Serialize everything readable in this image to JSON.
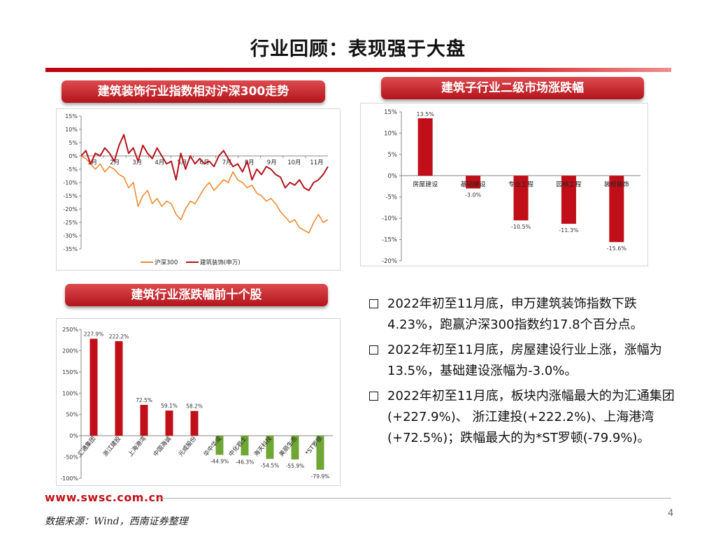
{
  "slide": {
    "title": "行业回顾：表现强于大盘",
    "page_number": "4",
    "footer_url": "www.swsc.com.cn",
    "footer_source": "数据来源：Wind，西南证券整理",
    "accent_color": "#c0121a"
  },
  "banners": {
    "trend": "建筑装饰行业指数相对沪深300走势",
    "subsector": "建筑子行业二级市场涨跌幅",
    "top10": "建筑行业涨跌幅前十个股"
  },
  "bullets": [
    "2022年初至11月底，申万建筑装饰指数下跌4.23%，跑赢沪深300指数约17.8个百分点。",
    "2022年初至11月底，房屋建设行业上涨，涨幅为13.5%，基础建设涨幅为-3.0%。",
    "2022年初至11月底，板块内涨幅最大的为汇通集团(+227.9%)、 浙江建投(+222.2%)、上海港湾(+72.5%)；跌幅最大的为*ST罗顿(-79.9%)。"
  ],
  "chart_data": [
    {
      "type": "line",
      "ylim": [
        -35,
        15
      ],
      "yticks": [
        "15%",
        "10%",
        "5%",
        "0%",
        "-5%",
        "-10%",
        "-15%",
        "-20%",
        "-25%",
        "-30%",
        "-35%"
      ],
      "ytick_values": [
        15,
        10,
        5,
        0,
        -5,
        -10,
        -15,
        -20,
        -25,
        -30,
        -35
      ],
      "month_labels": [
        "1月",
        "2月",
        "3月",
        "4月",
        "5月",
        "6月",
        "7月",
        "8月",
        "9月",
        "10月",
        "11月"
      ],
      "legend_position": "bottom",
      "series": [
        {
          "name": "沪深300",
          "color": "#f08a2e",
          "values": [
            0,
            -1,
            -3,
            -5,
            -3,
            -6,
            -4,
            -5,
            -7,
            -8,
            -12,
            -10,
            -19,
            -15,
            -13,
            -18,
            -16,
            -19,
            -17,
            -18,
            -22,
            -24,
            -20,
            -17,
            -18,
            -15,
            -12,
            -10,
            -13,
            -11,
            -9,
            -10,
            -6,
            -9,
            -10,
            -12,
            -11,
            -14,
            -15,
            -17,
            -16,
            -18,
            -21,
            -23,
            -25,
            -24,
            -27,
            -28,
            -29,
            -25,
            -22,
            -25,
            -24
          ]
        },
        {
          "name": "建筑装饰(申万)",
          "color": "#b5121b",
          "values": [
            0,
            2,
            -3,
            1,
            0,
            3,
            1,
            -2,
            4,
            8,
            1,
            3,
            -2,
            4,
            1,
            -1,
            3,
            0,
            -3,
            -2,
            -9,
            1,
            -5,
            0,
            -3,
            -1,
            -3,
            -2,
            -4,
            0,
            2,
            -1,
            -4,
            -3,
            -6,
            -2,
            -9,
            -5,
            -7,
            -4,
            -5,
            -7,
            -8,
            -12,
            -10,
            -11,
            -9,
            -12,
            -13,
            -10,
            -9,
            -7,
            -4
          ]
        }
      ]
    },
    {
      "type": "bar",
      "ylim": [
        -20,
        15
      ],
      "yticks": [
        "15%",
        "10%",
        "5%",
        "0%",
        "-5%",
        "-10%",
        "-15%",
        "-20%"
      ],
      "ytick_values": [
        15,
        10,
        5,
        0,
        -5,
        -10,
        -15,
        -20
      ],
      "categories": [
        "房屋建设",
        "基础建设",
        "专业工程",
        "园林工程",
        "装修装饰"
      ],
      "values": [
        13.5,
        -3.0,
        -10.5,
        -11.3,
        -15.6
      ],
      "data_labels": [
        "13.5%",
        "-3.0%",
        "-10.5%",
        "-11.3%",
        "-15.6%"
      ],
      "color": "#c00f18"
    },
    {
      "type": "bar",
      "ylim": [
        -100,
        250
      ],
      "yticks": [
        "250%",
        "200%",
        "150%",
        "100%",
        "50%",
        "0%",
        "-50%",
        "-100%"
      ],
      "ytick_values": [
        250,
        200,
        150,
        100,
        50,
        0,
        -50,
        -100
      ],
      "categories": [
        "汇通集团",
        "浙江建投",
        "上海港湾",
        "中国海诚",
        "元成股份",
        "华中华成",
        "中化岩土",
        "海天科技",
        "美丽生态",
        "*ST罗顿"
      ],
      "values": [
        227.9,
        222.2,
        72.5,
        59.1,
        58.2,
        -44.9,
        -46.3,
        -54.5,
        -55.9,
        -79.9
      ],
      "data_labels": [
        "227.9%",
        "222.2%",
        "72.5%",
        "59.1%",
        "58.2%",
        "-44.9%",
        "-46.3%",
        "-54.5%",
        "-55.9%",
        "-79.9%"
      ],
      "positive_color": "#c00f18",
      "negative_color": "#6fa636"
    }
  ]
}
